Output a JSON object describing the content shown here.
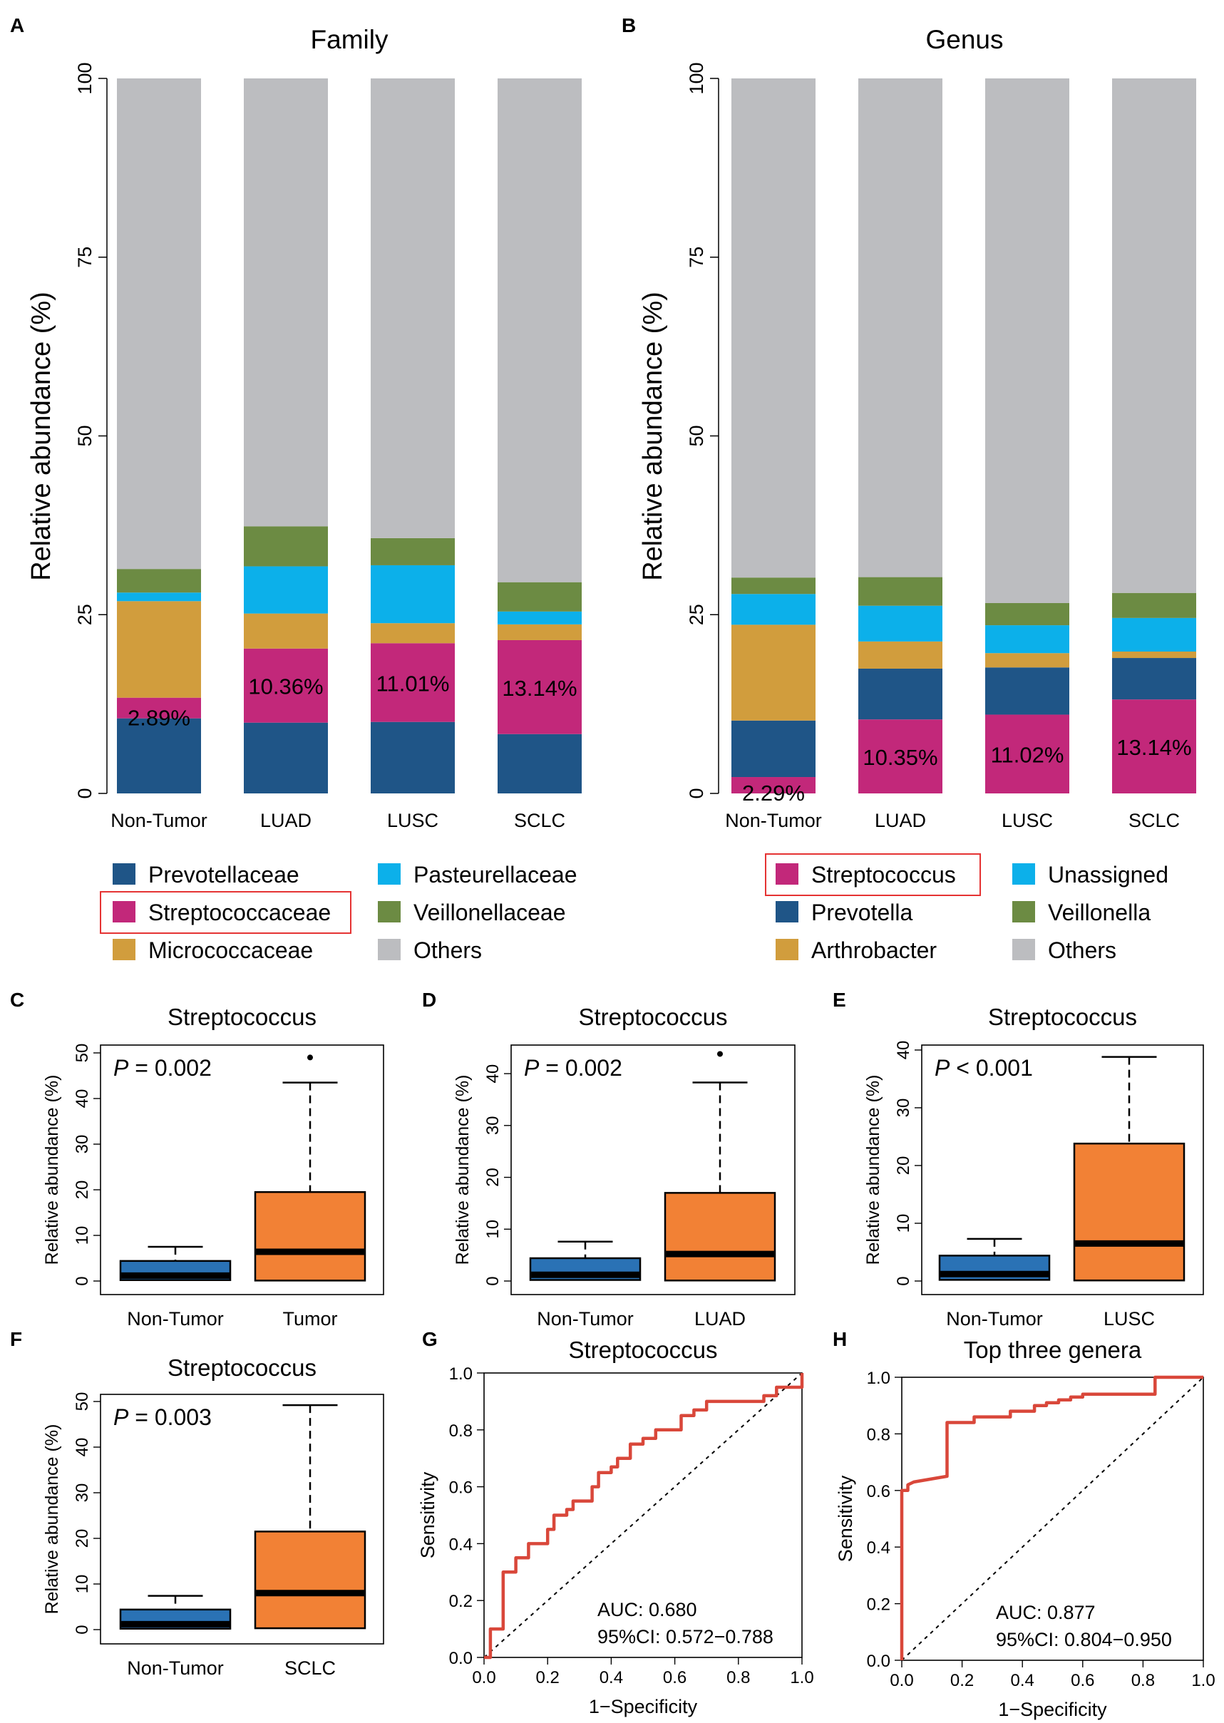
{
  "panel_labels": {
    "A": "A",
    "B": "B",
    "C": "C",
    "D": "D",
    "E": "E",
    "F": "F",
    "G": "G",
    "H": "H"
  },
  "colors": {
    "prevotella": "#1f5587",
    "streptococcus": "#c2287a",
    "micrococcaceae": "#d19d3d",
    "pasteurellaceae": "#0cb0ea",
    "veillonellaceae": "#6c8b43",
    "others": "#bcbdc0",
    "box_nontumor": "#2a72b5",
    "box_tumor": "#f28135",
    "roc_line": "#d9473a",
    "highlight": "#e53333"
  },
  "legend_family": [
    {
      "label": "Prevotellaceae",
      "color_key": "prevotella",
      "highlight": false
    },
    {
      "label": "Streptococcaceae",
      "color_key": "streptococcus",
      "highlight": true
    },
    {
      "label": "Micrococcaceae",
      "color_key": "micrococcaceae",
      "highlight": false
    },
    {
      "label": "Pasteurellaceae",
      "color_key": "pasteurellaceae",
      "highlight": false
    },
    {
      "label": "Veillonellaceae",
      "color_key": "veillonellaceae",
      "highlight": false
    },
    {
      "label": "Others",
      "color_key": "others",
      "highlight": false
    }
  ],
  "legend_genus": [
    {
      "label": "Streptococcus",
      "color_key": "streptococcus",
      "highlight": true
    },
    {
      "label": "Prevotella",
      "color_key": "prevotella",
      "highlight": false
    },
    {
      "label": "Arthrobacter",
      "color_key": "micrococcaceae",
      "highlight": false
    },
    {
      "label": "Unassigned",
      "color_key": "pasteurellaceae",
      "highlight": false
    },
    {
      "label": "Veillonella",
      "color_key": "veillonellaceae",
      "highlight": false
    },
    {
      "label": "Others",
      "color_key": "others",
      "highlight": false
    }
  ],
  "chart_data": [
    {
      "id": "A",
      "type": "bar",
      "stacked": true,
      "title": "Family",
      "ylabel": "Relative abundance (%)",
      "ylim": [
        0,
        100
      ],
      "yticks": [
        0,
        25,
        50,
        75,
        100
      ],
      "categories": [
        "Non-Tumor",
        "LUAD",
        "LUSC",
        "SCLC"
      ],
      "series": [
        {
          "name": "Prevotellaceae",
          "color_key": "prevotella",
          "values": [
            10.5,
            9.9,
            10.0,
            8.3
          ]
        },
        {
          "name": "Streptococcaceae",
          "color_key": "streptococcus",
          "values": [
            2.89,
            10.36,
            11.01,
            13.14
          ]
        },
        {
          "name": "Micrococcaceae",
          "color_key": "micrococcaceae",
          "values": [
            13.5,
            4.9,
            2.8,
            2.2
          ]
        },
        {
          "name": "Pasteurellaceae",
          "color_key": "pasteurellaceae",
          "values": [
            1.2,
            6.6,
            8.1,
            1.8
          ]
        },
        {
          "name": "Veillonellaceae",
          "color_key": "veillonellaceae",
          "values": [
            3.3,
            5.6,
            3.8,
            4.1
          ]
        },
        {
          "name": "Others",
          "color_key": "others",
          "values": [
            68.61,
            62.64,
            64.29,
            70.46
          ]
        }
      ],
      "labels": [
        "2.89%",
        "10.36%",
        "11.01%",
        "13.14%"
      ]
    },
    {
      "id": "B",
      "type": "bar",
      "stacked": true,
      "title": "Genus",
      "ylabel": "Relative abundance (%)",
      "ylim": [
        0,
        100
      ],
      "yticks": [
        0,
        25,
        50,
        75,
        100
      ],
      "categories": [
        "Non-Tumor",
        "LUAD",
        "LUSC",
        "SCLC"
      ],
      "series": [
        {
          "name": "Streptococcus",
          "color_key": "streptococcus",
          "values": [
            2.29,
            10.35,
            11.02,
            13.14
          ]
        },
        {
          "name": "Prevotella",
          "color_key": "prevotella",
          "values": [
            7.9,
            7.1,
            6.6,
            5.8
          ]
        },
        {
          "name": "Arthrobacter",
          "color_key": "micrococcaceae",
          "values": [
            13.4,
            3.8,
            2.0,
            0.9
          ]
        },
        {
          "name": "Unassigned",
          "color_key": "pasteurellaceae",
          "values": [
            4.3,
            5.0,
            3.9,
            4.7
          ]
        },
        {
          "name": "Veillonella",
          "color_key": "veillonellaceae",
          "values": [
            2.3,
            4.0,
            3.1,
            3.5
          ]
        },
        {
          "name": "Others",
          "color_key": "others",
          "values": [
            69.81,
            69.75,
            73.38,
            71.96
          ]
        }
      ],
      "labels": [
        "2.29%",
        "10.35%",
        "11.02%",
        "13.14%"
      ]
    },
    {
      "id": "C",
      "type": "box",
      "title": "Streptococcus",
      "ylabel": "Relative abundance (%)",
      "ylim": [
        0,
        50
      ],
      "yticks": [
        0,
        10,
        20,
        30,
        40,
        50
      ],
      "pvalue": "= 0.002",
      "groups": [
        {
          "name": "Non-Tumor",
          "color_key": "box_nontumor",
          "min": 0,
          "q1": 0.2,
          "median": 1.2,
          "q3": 4.4,
          "max": 7.5,
          "outliers": []
        },
        {
          "name": "Tumor",
          "color_key": "box_tumor",
          "min": 0,
          "q1": 0.1,
          "median": 6.4,
          "q3": 19.5,
          "max": 43.5,
          "outliers": [
            49
          ]
        }
      ]
    },
    {
      "id": "D",
      "type": "box",
      "title": "Streptococcus",
      "ylabel": "Relative abundance (%)",
      "ylim": [
        0,
        44
      ],
      "yticks": [
        0,
        10,
        20,
        30,
        40
      ],
      "pvalue": "= 0.002",
      "groups": [
        {
          "name": "Non-Tumor",
          "color_key": "box_nontumor",
          "min": 0,
          "q1": 0.2,
          "median": 1.2,
          "q3": 4.4,
          "max": 7.6,
          "outliers": []
        },
        {
          "name": "LUAD",
          "color_key": "box_tumor",
          "min": 0,
          "q1": 0.1,
          "median": 5.2,
          "q3": 17.0,
          "max": 38.3,
          "outliers": [
            43.8
          ]
        }
      ]
    },
    {
      "id": "E",
      "type": "box",
      "title": "Streptococcus",
      "ylabel": "Relative abundance (%)",
      "ylim": [
        0,
        39.5
      ],
      "yticks": [
        0,
        10,
        20,
        30,
        40
      ],
      "pvalue": "< 0.001",
      "groups": [
        {
          "name": "Non-Tumor",
          "color_key": "box_nontumor",
          "min": 0,
          "q1": 0.2,
          "median": 1.2,
          "q3": 4.4,
          "max": 7.3,
          "outliers": []
        },
        {
          "name": "LUSC",
          "color_key": "box_tumor",
          "min": 0,
          "q1": 0.1,
          "median": 6.5,
          "q3": 23.8,
          "max": 38.8,
          "outliers": []
        }
      ]
    },
    {
      "id": "F",
      "type": "box",
      "title": "Streptococcus",
      "ylabel": "Relative abundance (%)",
      "ylim": [
        0,
        50
      ],
      "yticks": [
        0,
        10,
        20,
        30,
        40,
        50
      ],
      "pvalue": "= 0.003",
      "groups": [
        {
          "name": "Non-Tumor",
          "color_key": "box_nontumor",
          "min": 0,
          "q1": 0.2,
          "median": 1.2,
          "q3": 4.4,
          "max": 7.4,
          "outliers": []
        },
        {
          "name": "SCLC",
          "color_key": "box_tumor",
          "min": 0,
          "q1": 0.3,
          "median": 8.0,
          "q3": 21.5,
          "max": 49.2,
          "outliers": []
        }
      ]
    },
    {
      "id": "G",
      "type": "line",
      "title": "Streptococcus",
      "xlabel": "1−Specificity",
      "ylabel": "Sensitivity",
      "xlim": [
        0,
        1
      ],
      "ylim": [
        0,
        1
      ],
      "xticks": [
        "0.0",
        "0.2",
        "0.4",
        "0.6",
        "0.8",
        "1.0"
      ],
      "yticks": [
        "0.0",
        "0.2",
        "0.4",
        "0.6",
        "0.8",
        "1.0"
      ],
      "auc": "AUC: 0.680",
      "ci": "95%CI: 0.572−0.788",
      "x": [
        0,
        0.02,
        0.02,
        0.06,
        0.06,
        0.1,
        0.1,
        0.14,
        0.14,
        0.2,
        0.2,
        0.22,
        0.22,
        0.26,
        0.26,
        0.28,
        0.28,
        0.34,
        0.34,
        0.36,
        0.36,
        0.4,
        0.4,
        0.42,
        0.42,
        0.46,
        0.46,
        0.5,
        0.5,
        0.54,
        0.54,
        0.62,
        0.62,
        0.66,
        0.66,
        0.7,
        0.7,
        0.88,
        0.88,
        0.92,
        0.92,
        1.0,
        1.0
      ],
      "y": [
        0,
        0,
        0.1,
        0.1,
        0.3,
        0.3,
        0.35,
        0.35,
        0.4,
        0.4,
        0.45,
        0.45,
        0.5,
        0.5,
        0.52,
        0.52,
        0.55,
        0.55,
        0.6,
        0.6,
        0.65,
        0.65,
        0.67,
        0.67,
        0.7,
        0.7,
        0.75,
        0.75,
        0.77,
        0.77,
        0.8,
        0.8,
        0.85,
        0.85,
        0.87,
        0.87,
        0.9,
        0.9,
        0.92,
        0.92,
        0.95,
        0.95,
        1.0
      ]
    },
    {
      "id": "H",
      "type": "line",
      "title": "Top three genera",
      "xlabel": "1−Specificity",
      "ylabel": "Sensitivity",
      "xlim": [
        0,
        1
      ],
      "ylim": [
        0,
        1
      ],
      "xticks": [
        "0.0",
        "0.2",
        "0.4",
        "0.6",
        "0.8",
        "1.0"
      ],
      "yticks": [
        "0.0",
        "0.2",
        "0.4",
        "0.6",
        "0.8",
        "1.0"
      ],
      "auc": "AUC: 0.877",
      "ci": "95%CI: 0.804−0.950",
      "x": [
        0,
        0,
        0.02,
        0.02,
        0.04,
        0.15,
        0.15,
        0.24,
        0.24,
        0.36,
        0.36,
        0.44,
        0.44,
        0.48,
        0.48,
        0.52,
        0.52,
        0.56,
        0.56,
        0.6,
        0.6,
        0.84,
        0.84,
        1.0
      ],
      "y": [
        0,
        0.6,
        0.6,
        0.62,
        0.63,
        0.65,
        0.84,
        0.84,
        0.86,
        0.86,
        0.88,
        0.88,
        0.9,
        0.9,
        0.91,
        0.91,
        0.92,
        0.92,
        0.93,
        0.93,
        0.94,
        0.94,
        1.0,
        1.0
      ]
    }
  ]
}
